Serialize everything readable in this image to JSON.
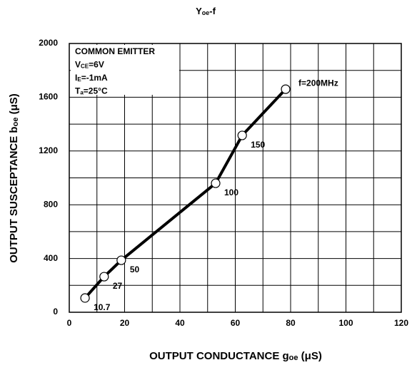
{
  "chart_data": {
    "type": "line",
    "title": [
      "Y",
      "oe",
      "-f"
    ],
    "x_label": [
      "OUTPUT CONDUCTANCE g",
      "oe",
      " (μS)"
    ],
    "y_label": [
      "OUTPUT SUSCEPTANCE b",
      "oe",
      " (μS)"
    ],
    "annotation": [
      [
        "COMMON EMITTER"
      ],
      [
        "V",
        "CE",
        "=6V"
      ],
      [
        "I",
        "E",
        "=-1mA"
      ],
      [
        "T",
        "a",
        "=25°C"
      ]
    ],
    "x": [
      5.7,
      12.6,
      18.8,
      52.9,
      62.5,
      78.2
    ],
    "series": [
      {
        "color": "#000000",
        "values": [
          106,
          265,
          387,
          960,
          1316,
          1660
        ]
      }
    ],
    "point_labels": [
      "10.7",
      "27",
      "50",
      "100",
      "150",
      "f=200MHz"
    ],
    "xlim": [
      0,
      120
    ],
    "ylim": [
      0,
      2000
    ],
    "xticks": [
      0,
      20,
      40,
      60,
      80,
      100,
      120
    ],
    "yticks": [
      0,
      400,
      800,
      1200,
      1600,
      2000
    ],
    "xgrid": [
      0,
      10,
      20,
      30,
      40,
      50,
      60,
      70,
      80,
      90,
      100,
      110,
      120
    ],
    "ygrid": [
      0,
      200,
      400,
      600,
      800,
      1000,
      1200,
      1400,
      1600,
      1800,
      2000
    ],
    "grid": true
  }
}
